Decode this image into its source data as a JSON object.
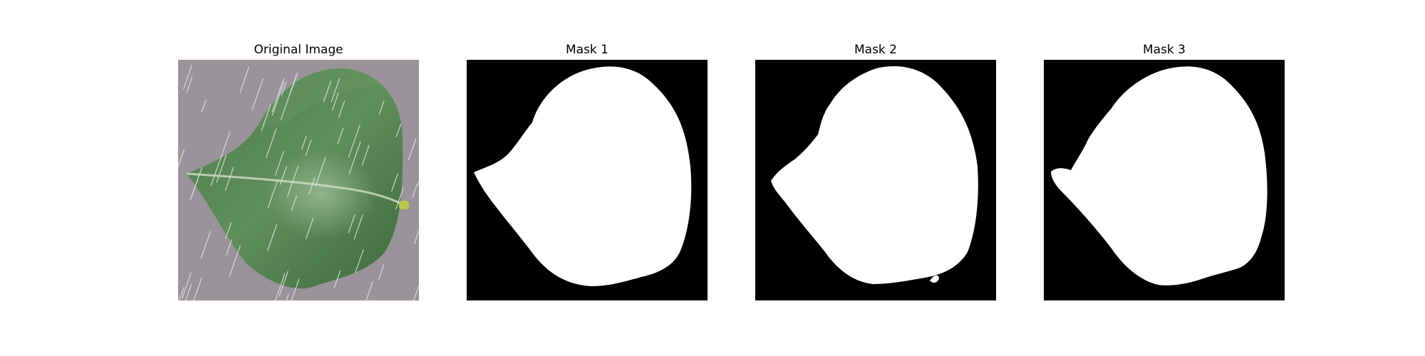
{
  "figure": {
    "panels": [
      {
        "title": "Original Image",
        "kind": "photo",
        "subject": "leaf-icon"
      },
      {
        "title": "Mask 1",
        "kind": "mask"
      },
      {
        "title": "Mask 2",
        "kind": "mask"
      },
      {
        "title": "Mask 3",
        "kind": "mask"
      }
    ]
  },
  "colors": {
    "background": "#ffffff",
    "photo_background": "#9a9399",
    "leaf_dark": "#3f6d3f",
    "leaf_mid": "#5b8b59",
    "leaf_light": "#8db286",
    "rain_streak": "#e9e9ec",
    "mask_background": "#000000",
    "mask_foreground": "#ffffff"
  }
}
